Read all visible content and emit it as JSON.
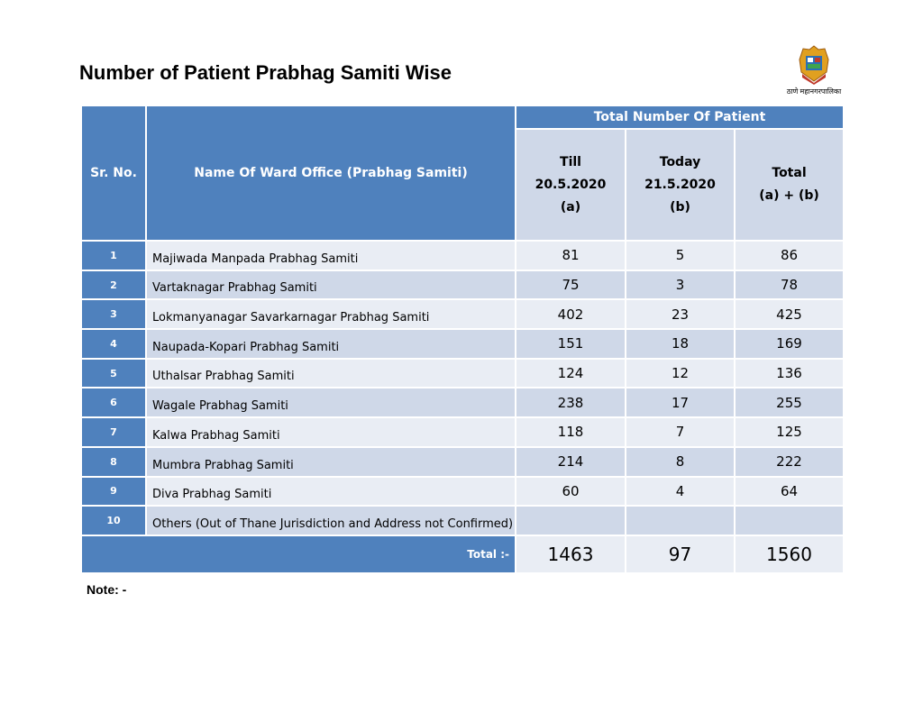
{
  "title": "Number of Patient Prabhag Samiti Wise",
  "logo": {
    "caption": "ठाणे महानगरपालिका"
  },
  "table": {
    "headers": {
      "sr_no": "Sr. No.",
      "name": "Name Of  Ward Office (Prabhag Samiti)",
      "group": "Total Number Of Patient",
      "col_a": [
        "Till",
        "20.5.2020",
        "(a)"
      ],
      "col_b": [
        "Today",
        "21.5.2020",
        "(b)"
      ],
      "col_total": [
        "Total",
        "(a) + (b)"
      ]
    },
    "rows": [
      {
        "sr": "1",
        "name": "Majiwada Manpada Prabhag Samiti",
        "a": "81",
        "b": "5",
        "total": "86"
      },
      {
        "sr": "2",
        "name": "Vartaknagar Prabhag Samiti",
        "a": "75",
        "b": "3",
        "total": "78"
      },
      {
        "sr": "3",
        "name": "Lokmanyanagar Savarkarnagar Prabhag Samiti",
        "a": "402",
        "b": "23",
        "total": "425"
      },
      {
        "sr": "4",
        "name": "Naupada-Kopari Prabhag Samiti",
        "a": "151",
        "b": "18",
        "total": "169"
      },
      {
        "sr": "5",
        "name": "Uthalsar Prabhag Samiti",
        "a": "124",
        "b": "12",
        "total": "136"
      },
      {
        "sr": "6",
        "name": "Wagale Prabhag Samiti",
        "a": "238",
        "b": "17",
        "total": "255"
      },
      {
        "sr": "7",
        "name": "Kalwa Prabhag Samiti",
        "a": "118",
        "b": "7",
        "total": "125"
      },
      {
        "sr": "8",
        "name": "Mumbra Prabhag Samiti",
        "a": "214",
        "b": "8",
        "total": "222"
      },
      {
        "sr": "9",
        "name": "Diva Prabhag Samiti",
        "a": "60",
        "b": "4",
        "total": "64"
      },
      {
        "sr": "10",
        "name": "Others (Out of Thane Jurisdiction and Address not Confirmed)",
        "a": "",
        "b": "",
        "total": ""
      }
    ],
    "total": {
      "label": "Total :-",
      "a": "1463",
      "b": "97",
      "total": "1560"
    }
  },
  "note": "Note: -"
}
